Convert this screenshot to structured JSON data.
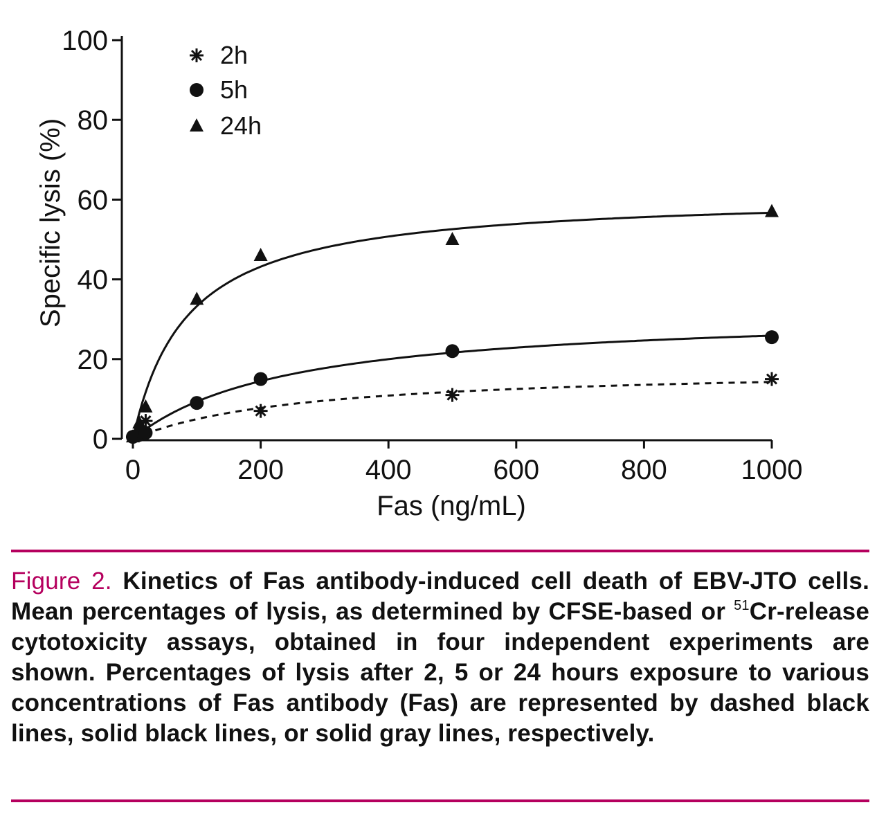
{
  "chart_data": {
    "type": "line",
    "xlabel": "Fas (ng/mL)",
    "ylabel": "Specific lysis (%)",
    "xlim": [
      0,
      1000
    ],
    "ylim": [
      0,
      100
    ],
    "xticks": [
      "0",
      "200",
      "400",
      "600",
      "800",
      "1000"
    ],
    "yticks": [
      "0",
      "20",
      "40",
      "60",
      "80",
      "100"
    ],
    "legend_position": "top-left",
    "grid": false,
    "series": [
      {
        "name": "2h",
        "marker": "asterisk",
        "line": "dashed",
        "x": [
          0,
          10,
          20,
          200,
          500,
          1000
        ],
        "y": [
          0.5,
          1.5,
          4.5,
          7,
          11,
          15
        ]
      },
      {
        "name": "5h",
        "marker": "circle",
        "line": "solid",
        "x": [
          0,
          10,
          20,
          100,
          200,
          500,
          1000
        ],
        "y": [
          0.5,
          1,
          1.5,
          9,
          15,
          22,
          25.5
        ]
      },
      {
        "name": "24h",
        "marker": "triangle",
        "line": "solid",
        "x": [
          0,
          10,
          20,
          100,
          200,
          500,
          1000
        ],
        "y": [
          0.5,
          4,
          8,
          35,
          46,
          50,
          57
        ]
      }
    ]
  },
  "caption": {
    "label": "Figure 2.",
    "text_part1": " Kinetics of Fas antibody-induced cell death of EBV-JTO cells. Mean percentages of lysis, as determined by CFSE-based or ",
    "superscript": "51",
    "text_part2": "Cr-release cytotoxicity assays, obtained in four independent experiments are shown. Percentages of lysis after 2, 5 or 24 hours exposure to various concentrations of Fas antibody (Fas) are represented by dashed black lines, solid black lines, or solid gray lines, respectively."
  }
}
